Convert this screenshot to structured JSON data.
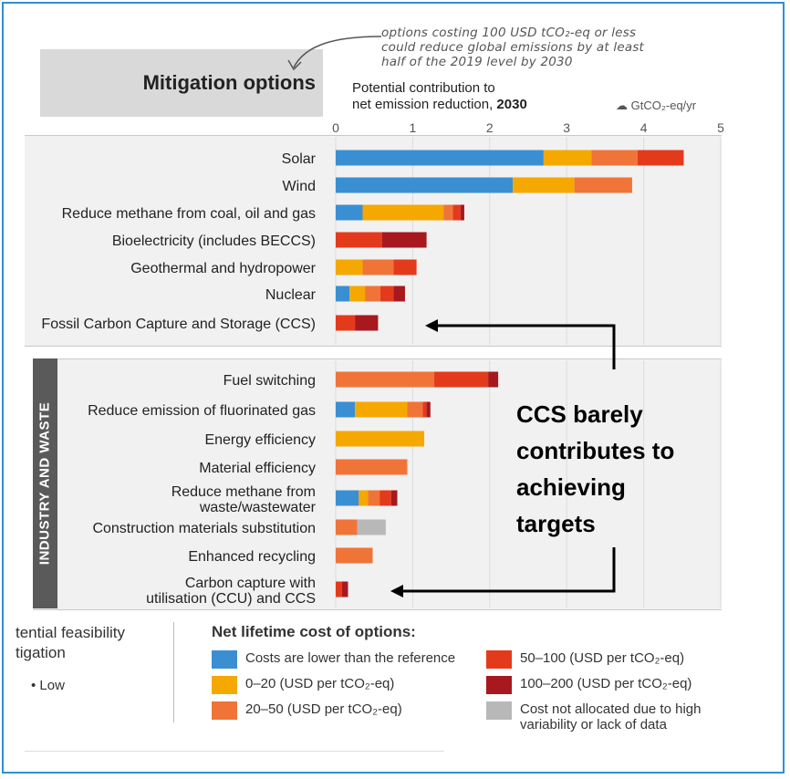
{
  "header": {
    "title": "Mitigation options",
    "axis_title_line1": "Potential contribution to",
    "axis_title_line2_prefix": "net emission reduction, ",
    "axis_title_line2_bold": "2030",
    "unit": "GtCO₂-eq/yr",
    "annotation": "options costing 100 USD tCO₂-eq or less could reduce global emissions by at least half of the 2019 level by 2030"
  },
  "sector_label": "INDUSTRY AND WASTE",
  "callout": "CCS barely contributes to achieving targets",
  "feasibility": {
    "title_line1": "tential feasibility",
    "title_line2": "tigation",
    "low": "• Low"
  },
  "legend": {
    "title": "Net lifetime cost of options:",
    "items": [
      {
        "key": "lower",
        "label": "Costs are lower than the reference"
      },
      {
        "key": "c0_20",
        "label": "0–20 (USD per tCO₂-eq)"
      },
      {
        "key": "c20_50",
        "label": "20–50 (USD per tCO₂-eq)"
      },
      {
        "key": "c50_100",
        "label": "50–100 (USD per tCO₂-eq)"
      },
      {
        "key": "c100_200",
        "label": "100–200 (USD per tCO₂-eq)"
      },
      {
        "key": "na",
        "label": "Cost not allocated due to high variability or lack of data"
      }
    ]
  },
  "colors": {
    "lower": "#3a8fd3",
    "c0_20": "#f5a800",
    "c20_50": "#f07438",
    "c50_100": "#e43a1c",
    "c100_200": "#a7181f",
    "na": "#b8b8b8"
  },
  "chart_data": {
    "type": "bar",
    "orientation": "horizontal",
    "stacked": true,
    "xlim": [
      0,
      5
    ],
    "x_ticks": [
      0,
      1,
      2,
      3,
      4,
      5
    ],
    "categories": [
      "Solar",
      "Wind",
      "Reduce methane from coal, oil and gas",
      "Bioelectricity (includes BECCS)",
      "Geothermal and hydropower",
      "Nuclear",
      "Fossil Carbon Capture and Storage (CCS)",
      "Fuel switching",
      "Reduce emission of fluorinated gas",
      "Energy efficiency",
      "Material efficiency",
      "Reduce methane from waste/wastewater",
      "Construction materials substitution",
      "Enhanced recycling",
      "Carbon capture with utilisation (CCU) and CCS"
    ],
    "series": [
      {
        "key": "lower",
        "name": "Costs are lower than the reference",
        "values": [
          2.7,
          2.3,
          0.35,
          0,
          0,
          0.18,
          0,
          0,
          0.25,
          0,
          0,
          0.3,
          0,
          0,
          0
        ]
      },
      {
        "key": "c0_20",
        "name": "0–20 (USD per tCO₂-eq)",
        "values": [
          0.62,
          0.8,
          1.05,
          0,
          0.35,
          0.2,
          0,
          0,
          0.68,
          1.15,
          0,
          0.12,
          0,
          0,
          0
        ]
      },
      {
        "key": "c20_50",
        "name": "20–50 (USD per tCO₂-eq)",
        "values": [
          0.6,
          0.75,
          0.12,
          0,
          0.4,
          0.2,
          0,
          1.28,
          0.2,
          0,
          0.93,
          0.15,
          0.28,
          0.48,
          0
        ]
      },
      {
        "key": "c50_100",
        "name": "50–100 (USD per tCO₂-eq)",
        "values": [
          0.6,
          0,
          0.1,
          0.6,
          0.3,
          0.17,
          0.25,
          0.7,
          0.05,
          0,
          0,
          0.15,
          0,
          0,
          0.08
        ]
      },
      {
        "key": "c100_200",
        "name": "100–200 (USD per tCO₂-eq)",
        "values": [
          0,
          0,
          0.05,
          0.58,
          0,
          0.15,
          0.3,
          0.13,
          0.05,
          0,
          0,
          0.08,
          0,
          0,
          0.08
        ]
      },
      {
        "key": "na",
        "name": "Cost not allocated due to high variability or lack of data",
        "values": [
          0,
          0,
          0,
          0,
          0,
          0,
          0,
          0,
          0,
          0,
          0,
          0,
          0.37,
          0,
          0
        ]
      }
    ]
  }
}
